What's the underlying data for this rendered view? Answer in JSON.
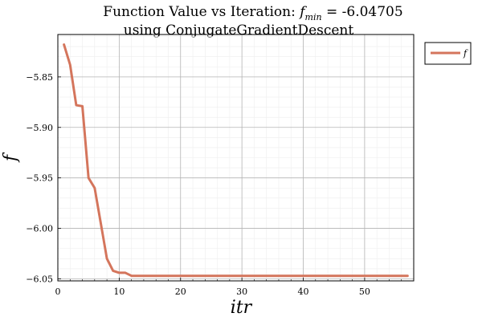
{
  "chart_data": {
    "type": "line",
    "title_main": "Function Value vs Iteration: ",
    "title_f": "f",
    "title_min": "min",
    "title_eq": " =  -6.04705",
    "title_line2": "using ConjugateGradientDescent",
    "xlabel": "itr",
    "ylabel": "f",
    "xlim": [
      0,
      58
    ],
    "ylim": [
      -6.052,
      -5.808
    ],
    "x_ticks": [
      0,
      10,
      20,
      30,
      40,
      50
    ],
    "x_tick_labels": [
      "0",
      "10",
      "20",
      "30",
      "40",
      "50"
    ],
    "y_ticks": [
      -5.85,
      -5.9,
      -5.95,
      -6.0,
      -6.05
    ],
    "y_tick_labels": [
      "−5.85",
      "−5.90",
      "−5.95",
      "−6.00",
      "−6.05"
    ],
    "grid": true,
    "legend_position": "outside-top-right",
    "series": [
      {
        "name": "f",
        "color": "#d4755c",
        "x": [
          1,
          2,
          3,
          4,
          5,
          6,
          7,
          8,
          9,
          10,
          11,
          12,
          13,
          14,
          15,
          16,
          17,
          18,
          19,
          20,
          21,
          22,
          23,
          24,
          25,
          26,
          27,
          28,
          29,
          30,
          31,
          32,
          33,
          34,
          35,
          36,
          37,
          38,
          39,
          40,
          41,
          42,
          43,
          44,
          45,
          46,
          47,
          48,
          49,
          50,
          51,
          52,
          53,
          54,
          55,
          56,
          57
        ],
        "y": [
          -5.818,
          -5.838,
          -5.878,
          -5.879,
          -5.95,
          -5.96,
          -5.995,
          -6.03,
          -6.042,
          -6.044,
          -6.044,
          -6.047,
          -6.047,
          -6.047,
          -6.047,
          -6.04705,
          -6.04705,
          -6.04705,
          -6.04705,
          -6.04705,
          -6.04705,
          -6.04705,
          -6.04705,
          -6.04705,
          -6.04705,
          -6.04705,
          -6.04705,
          -6.04705,
          -6.04705,
          -6.04705,
          -6.04705,
          -6.04705,
          -6.04705,
          -6.04705,
          -6.04705,
          -6.04705,
          -6.04705,
          -6.04705,
          -6.04705,
          -6.04705,
          -6.04705,
          -6.04705,
          -6.04705,
          -6.04705,
          -6.04705,
          -6.04705,
          -6.04705,
          -6.04705,
          -6.04705,
          -6.04705,
          -6.04705,
          -6.04705,
          -6.04705,
          -6.04705,
          -6.04705,
          -6.04705,
          -6.04705
        ]
      }
    ]
  }
}
